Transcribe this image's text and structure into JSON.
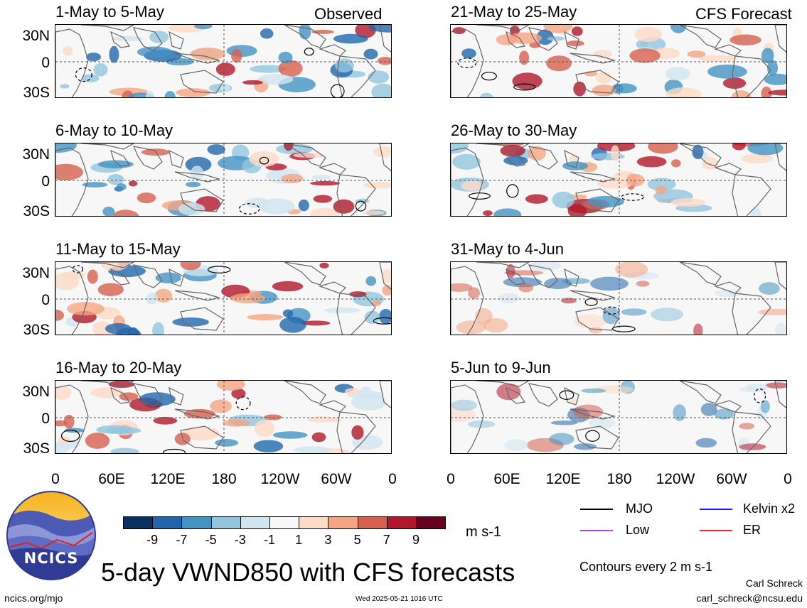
{
  "header": {
    "left_label": "Observed",
    "right_label": "CFS Forecast"
  },
  "panels": [
    {
      "title": "1-May to 5-May",
      "column": "observed"
    },
    {
      "title": "6-May to 10-May",
      "column": "observed"
    },
    {
      "title": "11-May to 15-May",
      "column": "observed"
    },
    {
      "title": "16-May to 20-May",
      "column": "observed"
    },
    {
      "title": "21-May to 25-May",
      "column": "forecast"
    },
    {
      "title": "26-May to 30-May",
      "column": "forecast"
    },
    {
      "title": "31-May to 4-Jun",
      "column": "forecast"
    },
    {
      "title": "5-Jun to 9-Jun",
      "column": "forecast"
    }
  ],
  "axes": {
    "lat_labels": [
      "30N",
      "0",
      "30S"
    ],
    "lon_labels": [
      "0",
      "60E",
      "120E",
      "180",
      "120W",
      "60W",
      "0"
    ]
  },
  "colorbar": {
    "labels": [
      "-9",
      "-7",
      "-5",
      "-3",
      "-1",
      "1",
      "3",
      "5",
      "7",
      "9"
    ],
    "colors": [
      "#0b3060",
      "#2166ac",
      "#4393c3",
      "#92c5de",
      "#d1e5f0",
      "#f7f7f7",
      "#fddbc7",
      "#f4a582",
      "#d6604d",
      "#b2182b",
      "#67001f"
    ],
    "units": "m s-1"
  },
  "legend": {
    "items": [
      {
        "label": "MJO",
        "color": "#000000"
      },
      {
        "label": "Kelvin x2",
        "color": "#1a1aff"
      },
      {
        "label": "Low",
        "color": "#b040ff"
      },
      {
        "label": "ER",
        "color": "#ff2020"
      }
    ],
    "contours_note": "Contours every 2 m s-1"
  },
  "footer": {
    "logo_text": "NCICS",
    "main_title": "5-day VWND850 with CFS forecasts",
    "site": "ncics.org/mjo",
    "timestamp": "Wed 2025-05-21 1016 UTC",
    "author": "Carl Schreck",
    "email": "carl_schreck@ncsu.edu"
  }
}
